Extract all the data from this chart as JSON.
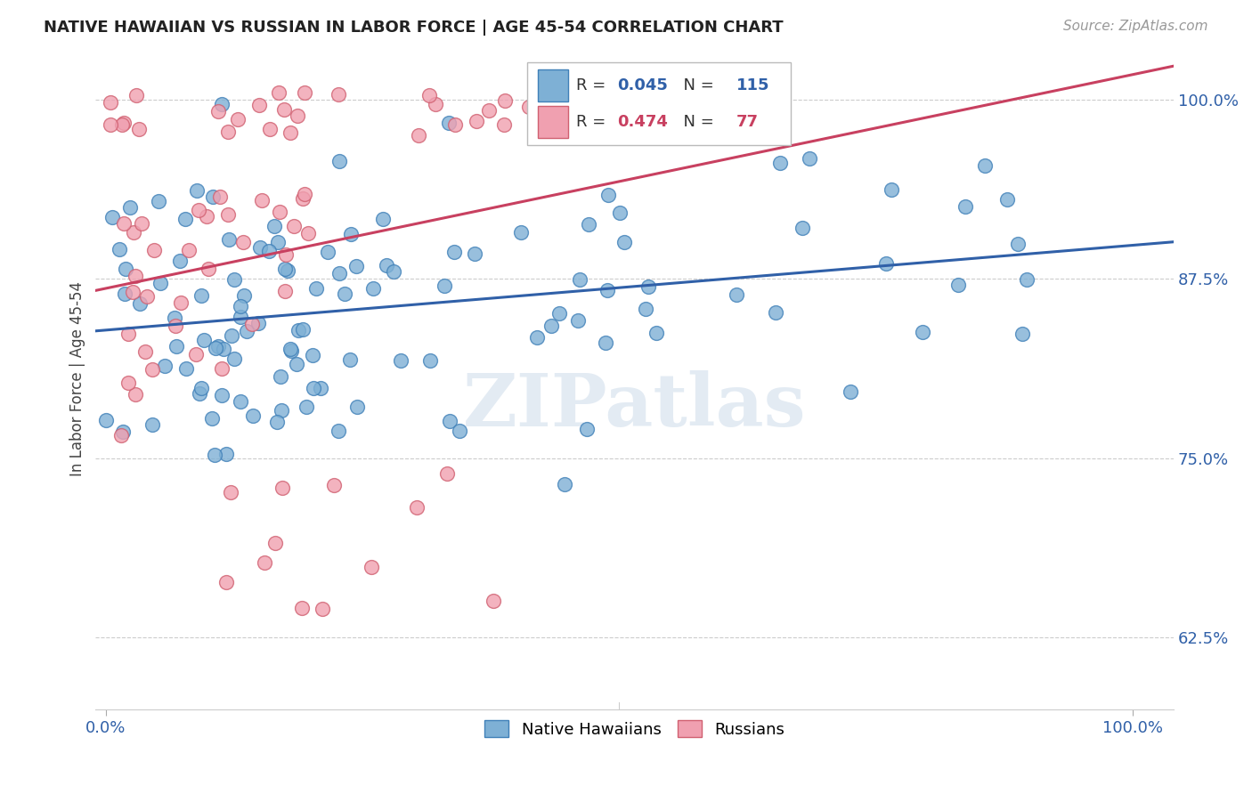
{
  "title": "NATIVE HAWAIIAN VS RUSSIAN IN LABOR FORCE | AGE 45-54 CORRELATION CHART",
  "source": "Source: ZipAtlas.com",
  "ylabel": "In Labor Force | Age 45-54",
  "blue_R": 0.045,
  "blue_N": 115,
  "pink_R": 0.474,
  "pink_N": 77,
  "blue_color": "#7EB0D5",
  "pink_color": "#F0A0B0",
  "blue_edge_color": "#4080B8",
  "pink_edge_color": "#D06070",
  "blue_line_color": "#3060A8",
  "pink_line_color": "#C84060",
  "legend_blue_label": "Native Hawaiians",
  "legend_pink_label": "Russians",
  "watermark": "ZIPatlas",
  "background_color": "#ffffff",
  "ytick_vals": [
    0.625,
    0.75,
    0.875,
    1.0
  ],
  "ytick_labels": [
    "62.5%",
    "75.0%",
    "87.5%",
    "100.0%"
  ],
  "xtick_vals": [
    0.0,
    1.0
  ],
  "xtick_labels": [
    "0.0%",
    "100.0%"
  ],
  "xlim": [
    -0.01,
    1.04
  ],
  "ylim": [
    0.575,
    1.035
  ]
}
